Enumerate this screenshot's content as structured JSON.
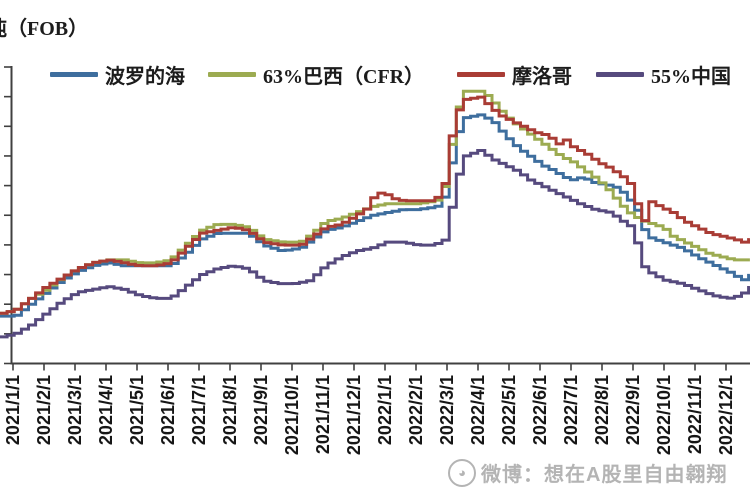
{
  "title": "吨（FOB）",
  "watermark": {
    "icon": "weibo-circle-logo",
    "text": "微博：想在A股里自由翱翔"
  },
  "chart_data": {
    "type": "line",
    "title": "吨（FOB）",
    "subtitle": "",
    "xlabel": "",
    "ylabel": "",
    "legend_position": "top",
    "grid": false,
    "y_axis": {
      "labels_visible": false,
      "tick_count": 11,
      "range": [
        0,
        100
      ],
      "note": "price index, axis labels cropped out of screenshot"
    },
    "x_axis": {
      "labels": [
        "2021/1/1",
        "2021/2/1",
        "2021/3/1",
        "2021/4/1",
        "2021/5/1",
        "2021/6/1",
        "2021/7/1",
        "2021/8/1",
        "2021/9/1",
        "2021/10/1",
        "2021/11/1",
        "2021/12/1",
        "2022/1/1",
        "2022/2/1",
        "2022/3/1",
        "2022/4/1",
        "2022/5/1",
        "2022/6/1",
        "2022/7/1",
        "2022/8/1",
        "2022/9/1",
        "2022/10/1",
        "2022/11/1",
        "2022/12/1"
      ],
      "rotation_deg": -90
    },
    "series": [
      {
        "name": "波罗的海",
        "color": "#3e6e9e",
        "points": [
          [
            -0.42,
            16
          ],
          [
            0,
            16
          ],
          [
            0.5,
            20
          ],
          [
            1,
            24
          ],
          [
            1.5,
            28
          ],
          [
            2,
            31
          ],
          [
            2.5,
            33
          ],
          [
            3,
            34
          ],
          [
            3.5,
            33
          ],
          [
            4,
            33
          ],
          [
            4.5,
            33
          ],
          [
            5,
            33
          ],
          [
            5.5,
            37
          ],
          [
            6,
            42
          ],
          [
            6.5,
            44
          ],
          [
            7,
            44
          ],
          [
            7.5,
            44
          ],
          [
            8,
            40
          ],
          [
            8.6,
            38
          ],
          [
            9.2,
            39
          ],
          [
            9.6,
            42
          ],
          [
            10,
            45
          ],
          [
            10.5,
            46
          ],
          [
            11,
            48
          ],
          [
            11.5,
            50
          ],
          [
            12,
            51
          ],
          [
            12.5,
            52
          ],
          [
            13,
            52
          ],
          [
            13.6,
            53
          ],
          [
            13.9,
            57
          ],
          [
            14.2,
            76
          ],
          [
            14.5,
            83
          ],
          [
            15,
            84
          ],
          [
            15.4,
            82
          ],
          [
            15.8,
            77
          ],
          [
            16.2,
            73
          ],
          [
            16.6,
            70
          ],
          [
            17,
            67
          ],
          [
            17.4,
            65
          ],
          [
            17.7,
            63
          ],
          [
            18,
            62
          ],
          [
            18.3,
            63
          ],
          [
            18.7,
            61
          ],
          [
            19.3,
            60
          ],
          [
            19.7,
            57
          ],
          [
            20.1,
            51
          ],
          [
            20.35,
            43
          ],
          [
            20.9,
            41
          ],
          [
            21.5,
            39
          ],
          [
            22,
            36
          ],
          [
            22.4,
            34
          ],
          [
            22.8,
            32
          ],
          [
            23.2,
            30
          ],
          [
            23.45,
            28
          ],
          [
            23.77,
            30
          ]
        ]
      },
      {
        "name": "63%巴西（CFR）",
        "color": "#9cab51",
        "points": [
          [
            -0.42,
            17
          ],
          [
            0,
            18
          ],
          [
            0.5,
            22
          ],
          [
            1,
            25
          ],
          [
            1.5,
            29
          ],
          [
            2,
            32
          ],
          [
            2.5,
            34
          ],
          [
            3,
            35
          ],
          [
            3.5,
            35
          ],
          [
            4,
            34
          ],
          [
            4.5,
            34
          ],
          [
            5,
            35
          ],
          [
            5.5,
            40
          ],
          [
            6,
            45
          ],
          [
            6.5,
            47
          ],
          [
            7,
            47
          ],
          [
            7.5,
            46
          ],
          [
            8,
            42
          ],
          [
            8.6,
            41
          ],
          [
            9.2,
            41
          ],
          [
            9.6,
            44
          ],
          [
            10,
            48
          ],
          [
            10.5,
            49
          ],
          [
            11,
            51
          ],
          [
            11.5,
            53
          ],
          [
            12,
            54
          ],
          [
            12.5,
            54
          ],
          [
            13,
            54
          ],
          [
            13.6,
            55
          ],
          [
            13.9,
            61
          ],
          [
            14.2,
            84
          ],
          [
            14.5,
            92
          ],
          [
            15,
            92
          ],
          [
            15.3,
            90
          ],
          [
            15.6,
            86
          ],
          [
            16,
            82
          ],
          [
            16.4,
            79
          ],
          [
            16.8,
            76
          ],
          [
            17.2,
            73
          ],
          [
            17.6,
            70
          ],
          [
            18,
            68
          ],
          [
            18.4,
            65
          ],
          [
            18.8,
            62
          ],
          [
            19.2,
            58
          ],
          [
            19.5,
            54
          ],
          [
            19.8,
            51
          ],
          [
            20.1,
            49
          ],
          [
            20.3,
            48
          ],
          [
            20.9,
            46
          ],
          [
            21.2,
            43
          ],
          [
            21.6,
            41
          ],
          [
            22,
            39
          ],
          [
            22.4,
            37
          ],
          [
            22.8,
            36
          ],
          [
            23.2,
            35
          ],
          [
            23.5,
            35
          ],
          [
            23.77,
            35
          ]
        ]
      },
      {
        "name": "摩洛哥",
        "color": "#a93c35",
        "points": [
          [
            -0.42,
            17
          ],
          [
            0,
            18
          ],
          [
            0.5,
            22
          ],
          [
            1,
            26
          ],
          [
            1.5,
            29
          ],
          [
            2,
            32
          ],
          [
            2.5,
            34
          ],
          [
            3,
            35
          ],
          [
            3.5,
            34
          ],
          [
            4,
            33
          ],
          [
            4.5,
            33
          ],
          [
            5,
            34
          ],
          [
            5.5,
            39
          ],
          [
            6,
            44
          ],
          [
            6.5,
            45
          ],
          [
            7,
            46
          ],
          [
            7.5,
            45
          ],
          [
            8,
            41
          ],
          [
            8.6,
            40
          ],
          [
            9.2,
            40
          ],
          [
            9.6,
            43
          ],
          [
            10,
            46
          ],
          [
            10.5,
            47
          ],
          [
            11,
            50
          ],
          [
            11.3,
            52
          ],
          [
            11.6,
            57
          ],
          [
            11.9,
            58
          ],
          [
            12.1,
            56
          ],
          [
            12.5,
            55
          ],
          [
            13,
            55
          ],
          [
            13.5,
            55
          ],
          [
            13.8,
            58
          ],
          [
            14.1,
            79
          ],
          [
            14.4,
            89
          ],
          [
            15,
            90
          ],
          [
            15.3,
            87
          ],
          [
            15.6,
            84
          ],
          [
            16,
            82
          ],
          [
            16.4,
            80
          ],
          [
            16.8,
            78
          ],
          [
            17.2,
            77
          ],
          [
            17.5,
            74
          ],
          [
            17.7,
            76
          ],
          [
            18,
            73
          ],
          [
            18.4,
            71
          ],
          [
            18.8,
            68
          ],
          [
            19.2,
            66
          ],
          [
            19.6,
            63
          ],
          [
            19.9,
            60
          ],
          [
            20.15,
            50
          ],
          [
            20.3,
            48
          ],
          [
            20.45,
            55
          ],
          [
            20.8,
            53
          ],
          [
            21.2,
            51
          ],
          [
            21.6,
            48
          ],
          [
            22,
            46
          ],
          [
            22.4,
            44
          ],
          [
            22.8,
            43
          ],
          [
            23.2,
            42
          ],
          [
            23.5,
            41
          ],
          [
            23.77,
            42
          ]
        ]
      },
      {
        "name": "55%中国",
        "color": "#564a7e",
        "points": [
          [
            -0.42,
            9
          ],
          [
            0,
            10
          ],
          [
            0.5,
            13
          ],
          [
            1,
            17
          ],
          [
            1.5,
            21
          ],
          [
            2,
            24
          ],
          [
            2.5,
            25
          ],
          [
            3,
            26
          ],
          [
            3.5,
            25
          ],
          [
            4,
            23
          ],
          [
            4.5,
            22
          ],
          [
            5,
            22
          ],
          [
            5.5,
            26
          ],
          [
            6,
            30
          ],
          [
            6.5,
            32
          ],
          [
            7,
            33
          ],
          [
            7.5,
            32
          ],
          [
            8,
            28
          ],
          [
            8.5,
            27
          ],
          [
            9,
            27
          ],
          [
            9.5,
            28
          ],
          [
            9.8,
            31
          ],
          [
            10,
            33
          ],
          [
            10.5,
            36
          ],
          [
            11,
            38
          ],
          [
            11.5,
            39
          ],
          [
            12,
            41
          ],
          [
            12.5,
            41
          ],
          [
            13,
            40
          ],
          [
            13.5,
            40
          ],
          [
            13.9,
            42
          ],
          [
            14.2,
            61
          ],
          [
            14.5,
            70
          ],
          [
            15,
            72
          ],
          [
            15.4,
            69
          ],
          [
            15.8,
            67
          ],
          [
            16.2,
            65
          ],
          [
            16.6,
            62
          ],
          [
            17,
            60
          ],
          [
            17.4,
            58
          ],
          [
            17.8,
            56
          ],
          [
            18.2,
            54
          ],
          [
            18.7,
            52
          ],
          [
            19.2,
            51
          ],
          [
            19.6,
            48
          ],
          [
            19.9,
            46
          ],
          [
            20.1,
            39
          ],
          [
            20.3,
            32
          ],
          [
            20.6,
            30
          ],
          [
            21,
            28
          ],
          [
            21.5,
            27
          ],
          [
            22,
            25
          ],
          [
            22.5,
            23
          ],
          [
            23,
            22
          ],
          [
            23.4,
            23
          ],
          [
            23.77,
            26
          ]
        ]
      }
    ]
  }
}
